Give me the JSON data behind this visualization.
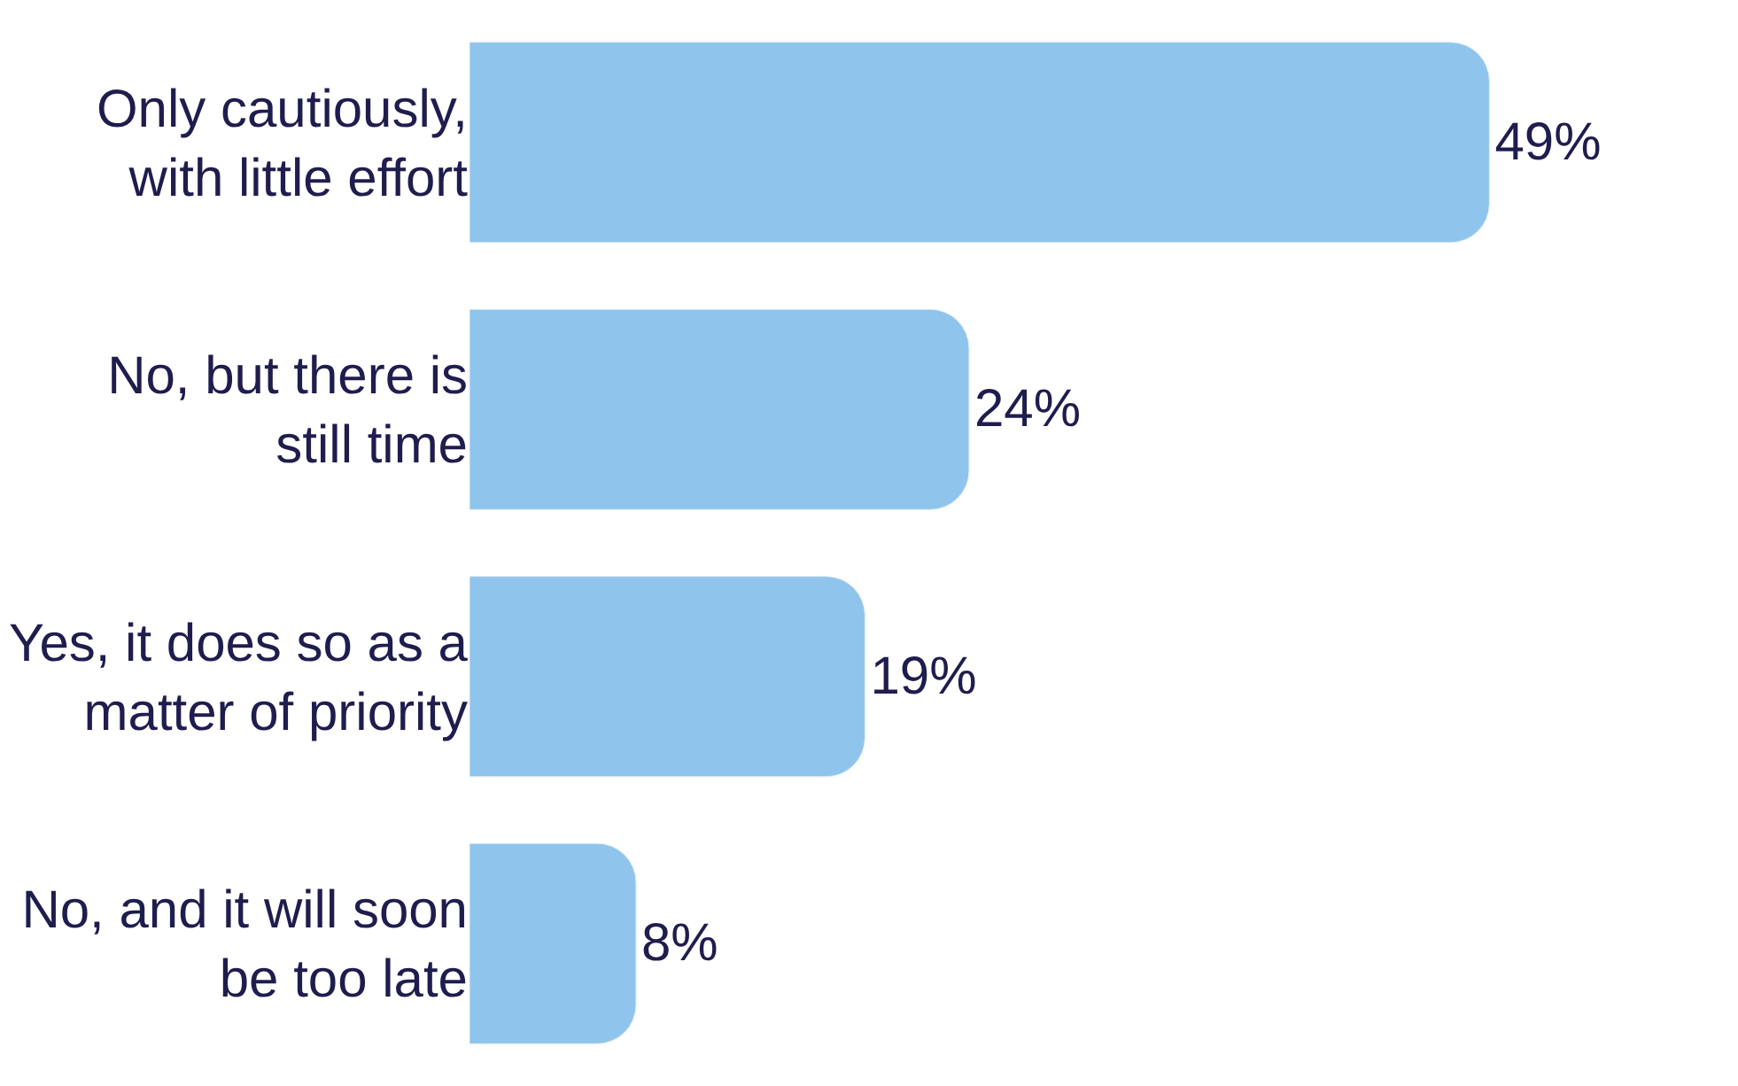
{
  "chart_data": {
    "type": "bar",
    "orientation": "horizontal",
    "categories": [
      "Only cautiously, with little effort",
      "No, but there is still time",
      "Yes, it does so as a matter of priority",
      "No, and it will soon be too late"
    ],
    "values": [
      49,
      24,
      19,
      8
    ],
    "value_labels": [
      "49%",
      "24%",
      "19%",
      "8%"
    ],
    "color": "#8fc5ec"
  }
}
